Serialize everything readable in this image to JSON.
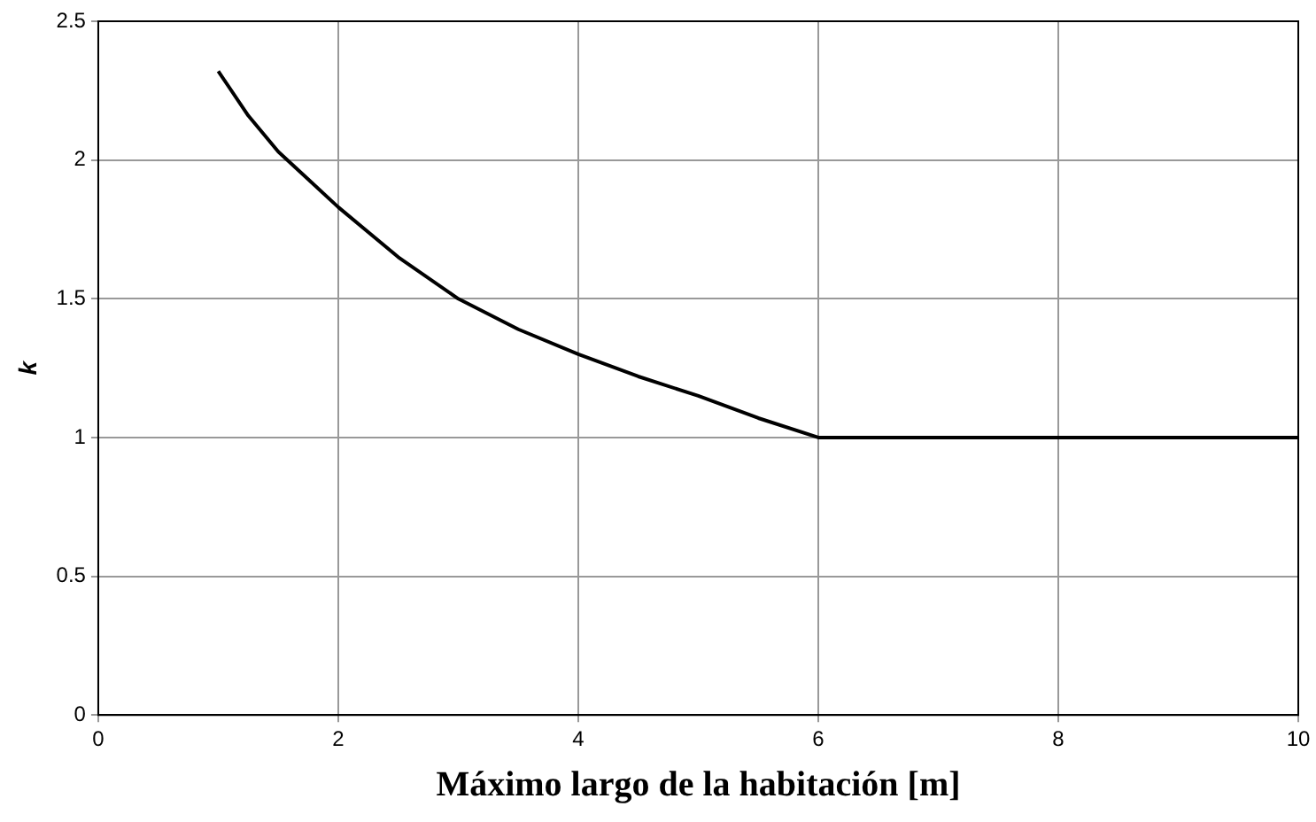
{
  "chart_data": {
    "type": "line",
    "xlabel": "Máximo largo de la habitación [m]",
    "ylabel": "k",
    "series": [
      {
        "color": "#000000",
        "x": [
          1,
          1.25,
          1.5,
          1.75,
          2,
          2.5,
          3,
          3.5,
          4,
          4.5,
          5,
          5.5,
          6,
          7,
          8,
          9,
          10
        ],
        "values": [
          2.32,
          2.16,
          2.03,
          1.93,
          1.83,
          1.65,
          1.5,
          1.39,
          1.3,
          1.22,
          1.15,
          1.07,
          1.0,
          1.0,
          1.0,
          1.0,
          1.0
        ]
      }
    ],
    "xlim": [
      0,
      10
    ],
    "xticks": [
      0,
      2,
      4,
      6,
      8,
      10
    ],
    "ylim": [
      0,
      2.5
    ],
    "yticks": [
      0,
      0.5,
      1,
      1.5,
      2,
      2.5
    ],
    "grid": true,
    "legend": false,
    "marker": "none",
    "line_style": "solid"
  }
}
